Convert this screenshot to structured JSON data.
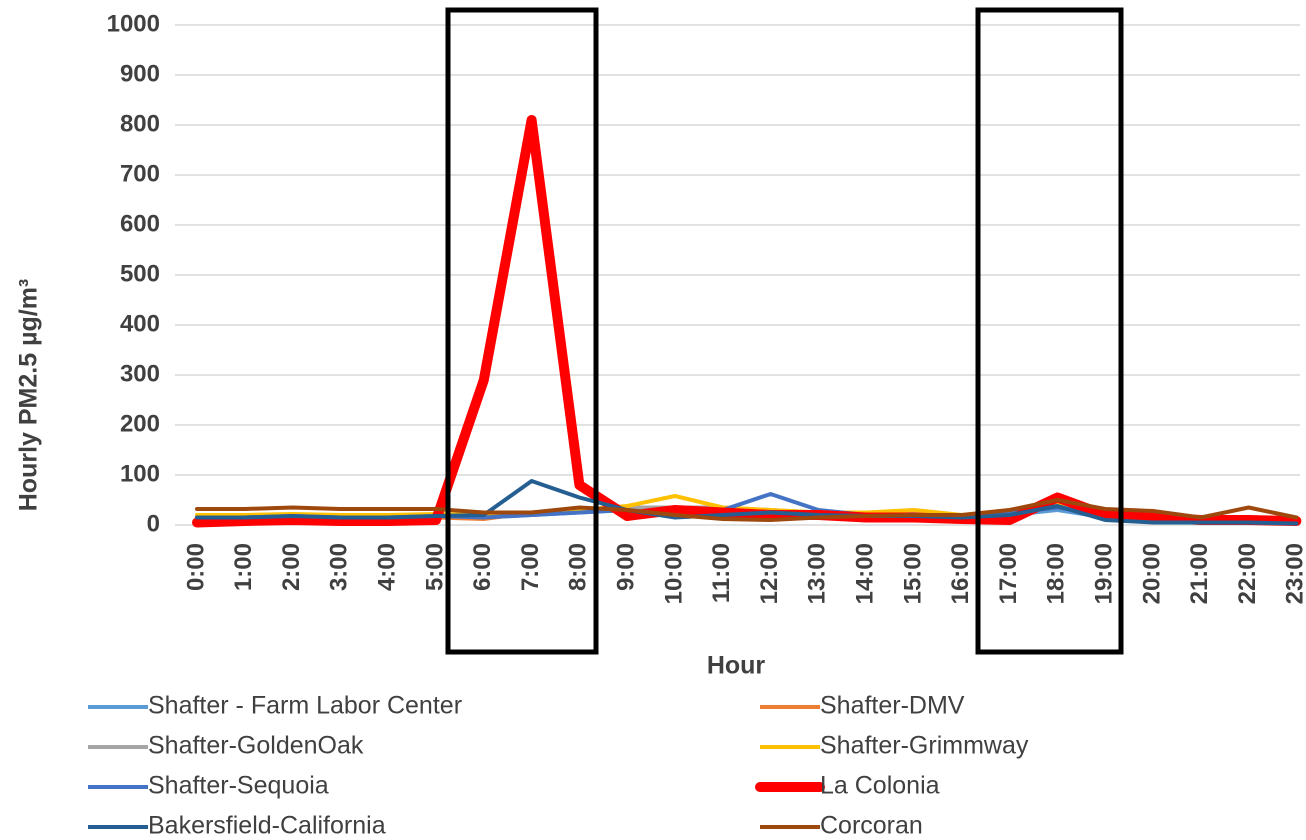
{
  "chart_data": {
    "type": "line",
    "y_label": "Hourly PM2.5 µg/m³",
    "x_label": "Hour",
    "categories": [
      "0:00",
      "1:00",
      "2:00",
      "3:00",
      "4:00",
      "5:00",
      "6:00",
      "7:00",
      "8:00",
      "9:00",
      "10:00",
      "11:00",
      "12:00",
      "13:00",
      "14:00",
      "15:00",
      "16:00",
      "17:00",
      "18:00",
      "19:00",
      "20:00",
      "21:00",
      "22:00",
      "23:00"
    ],
    "ylim": [
      0,
      1000
    ],
    "yticks": [
      0,
      100,
      200,
      300,
      400,
      500,
      600,
      700,
      800,
      900,
      1000
    ],
    "grid": true,
    "legend": "bottom",
    "series": [
      {
        "name": "Shafter - Farm Labor Center",
        "color": "#5b9bd5",
        "values": [
          15,
          15,
          18,
          15,
          14,
          15,
          15,
          20,
          25,
          30,
          30,
          30,
          25,
          25,
          20,
          20,
          18,
          20,
          30,
          15,
          10,
          8,
          8,
          5
        ]
      },
      {
        "name": "Shafter-DMV",
        "color": "#ed7d31",
        "values": [
          12,
          12,
          15,
          12,
          12,
          15,
          12,
          25,
          30,
          30,
          25,
          25,
          20,
          20,
          18,
          18,
          15,
          20,
          45,
          25,
          15,
          10,
          10,
          8
        ]
      },
      {
        "name": "Shafter-GoldenOak",
        "color": "#a5a5a5",
        "values": [
          18,
          18,
          20,
          18,
          18,
          20,
          20,
          25,
          30,
          35,
          35,
          35,
          30,
          25,
          20,
          25,
          20,
          25,
          40,
          30,
          15,
          10,
          10,
          8
        ]
      },
      {
        "name": "Shafter-Grimmway",
        "color": "#ffc000",
        "values": [
          20,
          20,
          22,
          20,
          20,
          22,
          20,
          25,
          30,
          38,
          58,
          35,
          30,
          25,
          25,
          30,
          20,
          30,
          45,
          30,
          20,
          12,
          10,
          10
        ]
      },
      {
        "name": "Shafter-Sequoia",
        "color": "#4472c4",
        "values": [
          15,
          15,
          18,
          15,
          15,
          18,
          15,
          20,
          25,
          30,
          20,
          30,
          62,
          30,
          20,
          20,
          15,
          25,
          35,
          20,
          10,
          8,
          8,
          5
        ]
      },
      {
        "name": "La Colonia",
        "color": "#ff0000",
        "values": [
          5,
          8,
          10,
          8,
          8,
          10,
          290,
          810,
          80,
          18,
          30,
          25,
          20,
          20,
          15,
          15,
          12,
          10,
          55,
          20,
          15,
          10,
          10,
          8
        ]
      },
      {
        "name": "Bakersfield-California",
        "color": "#255e91",
        "values": [
          15,
          15,
          18,
          15,
          15,
          18,
          20,
          88,
          55,
          30,
          15,
          20,
          25,
          20,
          18,
          18,
          15,
          20,
          38,
          10,
          5,
          5,
          5,
          3
        ]
      },
      {
        "name": "Corcoran",
        "color": "#9e480e",
        "values": [
          32,
          32,
          35,
          32,
          32,
          32,
          25,
          25,
          35,
          30,
          20,
          12,
          10,
          15,
          18,
          20,
          20,
          30,
          50,
          32,
          28,
          15,
          35,
          15
        ]
      }
    ]
  }
}
